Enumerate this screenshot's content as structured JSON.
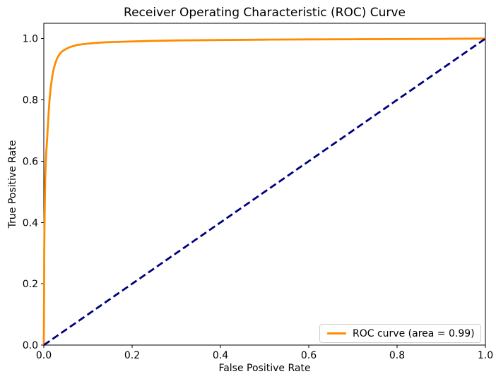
{
  "figure": {
    "background": "#ffffff",
    "frame_color": "#000000"
  },
  "chart_data": {
    "type": "line",
    "title": "Receiver Operating Characteristic (ROC) Curve",
    "xlabel": "False Positive Rate",
    "ylabel": "True Positive Rate",
    "xlim": [
      0.0,
      1.0
    ],
    "ylim": [
      0.0,
      1.05
    ],
    "grid": false,
    "x_ticks": {
      "values": [
        0.0,
        0.2,
        0.4,
        0.6,
        0.8,
        1.0
      ],
      "labels": [
        "0.0",
        "0.2",
        "0.4",
        "0.6",
        "0.8",
        "1.0"
      ]
    },
    "y_ticks": {
      "values": [
        0.0,
        0.2,
        0.4,
        0.6,
        0.8,
        1.0
      ],
      "labels": [
        "0.0",
        "0.2",
        "0.4",
        "0.6",
        "0.8",
        "1.0"
      ]
    },
    "auc": 0.99,
    "legend": {
      "position": "lower right",
      "entries": [
        {
          "label": "ROC curve (area = 0.99)",
          "color": "#ff8c00"
        }
      ]
    },
    "series": [
      {
        "name": "roc-curve",
        "color": "#ff8c00",
        "line_style": "solid",
        "line_width": 2.8,
        "points": [
          [
            0.0,
            0.0
          ],
          [
            0.0005,
            0.12
          ],
          [
            0.0008,
            0.22
          ],
          [
            0.001,
            0.3
          ],
          [
            0.0015,
            0.38
          ],
          [
            0.002,
            0.44
          ],
          [
            0.0025,
            0.49
          ],
          [
            0.003,
            0.53
          ],
          [
            0.0035,
            0.555
          ],
          [
            0.004,
            0.575
          ],
          [
            0.0045,
            0.59
          ],
          [
            0.005,
            0.61
          ],
          [
            0.0055,
            0.625
          ],
          [
            0.006,
            0.64
          ],
          [
            0.007,
            0.66
          ],
          [
            0.008,
            0.685
          ],
          [
            0.009,
            0.71
          ],
          [
            0.01,
            0.735
          ],
          [
            0.011,
            0.76
          ],
          [
            0.0125,
            0.79
          ],
          [
            0.013,
            0.8
          ],
          [
            0.0145,
            0.825
          ],
          [
            0.016,
            0.845
          ],
          [
            0.018,
            0.865
          ],
          [
            0.02,
            0.885
          ],
          [
            0.023,
            0.905
          ],
          [
            0.026,
            0.92
          ],
          [
            0.03,
            0.935
          ],
          [
            0.034,
            0.946
          ],
          [
            0.039,
            0.955
          ],
          [
            0.044,
            0.961
          ],
          [
            0.05,
            0.966
          ],
          [
            0.057,
            0.971
          ],
          [
            0.065,
            0.975
          ],
          [
            0.075,
            0.979
          ],
          [
            0.09,
            0.982
          ],
          [
            0.11,
            0.985
          ],
          [
            0.14,
            0.988
          ],
          [
            0.18,
            0.99
          ],
          [
            0.23,
            0.992
          ],
          [
            0.3,
            0.994
          ],
          [
            0.4,
            0.9955
          ],
          [
            0.5,
            0.9965
          ],
          [
            0.6,
            0.9975
          ],
          [
            0.7,
            0.998
          ],
          [
            0.8,
            0.9985
          ],
          [
            0.9,
            0.999
          ],
          [
            1.0,
            1.0
          ]
        ]
      },
      {
        "name": "chance-diagonal",
        "color": "#000080",
        "line_style": "dashed",
        "line_width": 2.8,
        "points": [
          [
            0.0,
            0.0
          ],
          [
            1.0,
            1.0
          ]
        ]
      }
    ]
  }
}
